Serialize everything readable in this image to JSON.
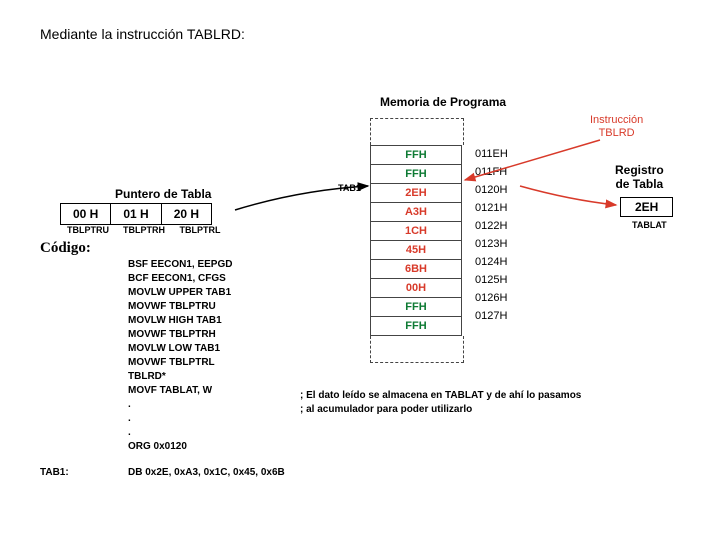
{
  "title": "Mediante la instrucción TABLRD:",
  "memHeader": "Memoria de Programa",
  "instrLabel": "Instrucción\nTBLRD",
  "pointerLabel": "Puntero de Tabla",
  "pointer": {
    "cells": [
      "00 H",
      "01 H",
      "20 H"
    ],
    "subs": [
      "TBLPTRU",
      "TBLPTRH",
      "TBLPTRL"
    ]
  },
  "codigoLabel": "Código:",
  "tab1Label": "TAB1",
  "regLabel": "Registro\nde Tabla",
  "regValue": "2EH",
  "regSub": "TABLAT",
  "memory": {
    "rows": [
      {
        "val": "FFH",
        "cls": "green",
        "addr": "011EH"
      },
      {
        "val": "FFH",
        "cls": "green",
        "addr": "011FH"
      },
      {
        "val": "2EH",
        "cls": "red",
        "addr": "0120H"
      },
      {
        "val": "A3H",
        "cls": "red",
        "addr": "0121H"
      },
      {
        "val": "1CH",
        "cls": "red",
        "addr": "0122H"
      },
      {
        "val": "45H",
        "cls": "red",
        "addr": "0123H"
      },
      {
        "val": "6BH",
        "cls": "red",
        "addr": "0124H"
      },
      {
        "val": "00H",
        "cls": "red",
        "addr": "0125H"
      },
      {
        "val": "FFH",
        "cls": "green",
        "addr": "0126H"
      },
      {
        "val": "FFH",
        "cls": "green",
        "addr": "0127H"
      }
    ]
  },
  "code": [
    "BSF EECON1, EEPGD",
    "BCF EECON1, CFGS",
    "MOVLW UPPER TAB1",
    "MOVWF TBLPTRU",
    "MOVLW HIGH TAB1",
    "MOVWF TBLPTRH",
    "MOVLW LOW TAB1",
    "MOVWF TBLPTRL",
    "TBLRD*",
    "MOVF TABLAT, W",
    ".",
    ".",
    ".",
    "ORG 0x0120",
    "DB 0x2E, 0xA3, 0x1C, 0x45, 0x6B"
  ],
  "tab1RowLabel": "TAB1:",
  "comment1": "; El dato leído se almacena en TABLAT y de ahí lo pasamos",
  "comment2": "; al acumulador para poder utilizarlo",
  "colors": {
    "redArrow": "#d83a2a",
    "blackArrow": "#000"
  }
}
